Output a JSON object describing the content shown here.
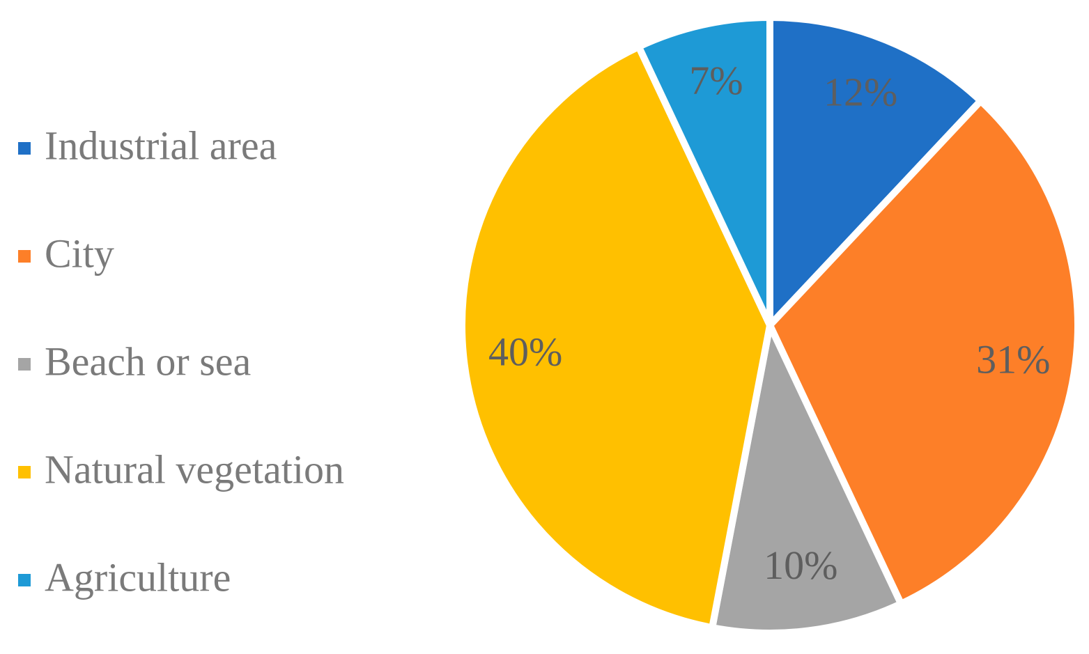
{
  "chart_data": {
    "type": "pie",
    "categories": [
      "Industrial area",
      "City",
      "Beach or sea",
      "Natural vegetation",
      "Agriculture"
    ],
    "values": [
      12,
      31,
      10,
      40,
      7
    ],
    "value_labels": [
      "12%",
      "31%",
      "10%",
      "40%",
      "7%"
    ],
    "colors": [
      "#1f70c6",
      "#fd7f28",
      "#a5a5a5",
      "#ffc000",
      "#1e9ad6"
    ],
    "legend": "left"
  }
}
